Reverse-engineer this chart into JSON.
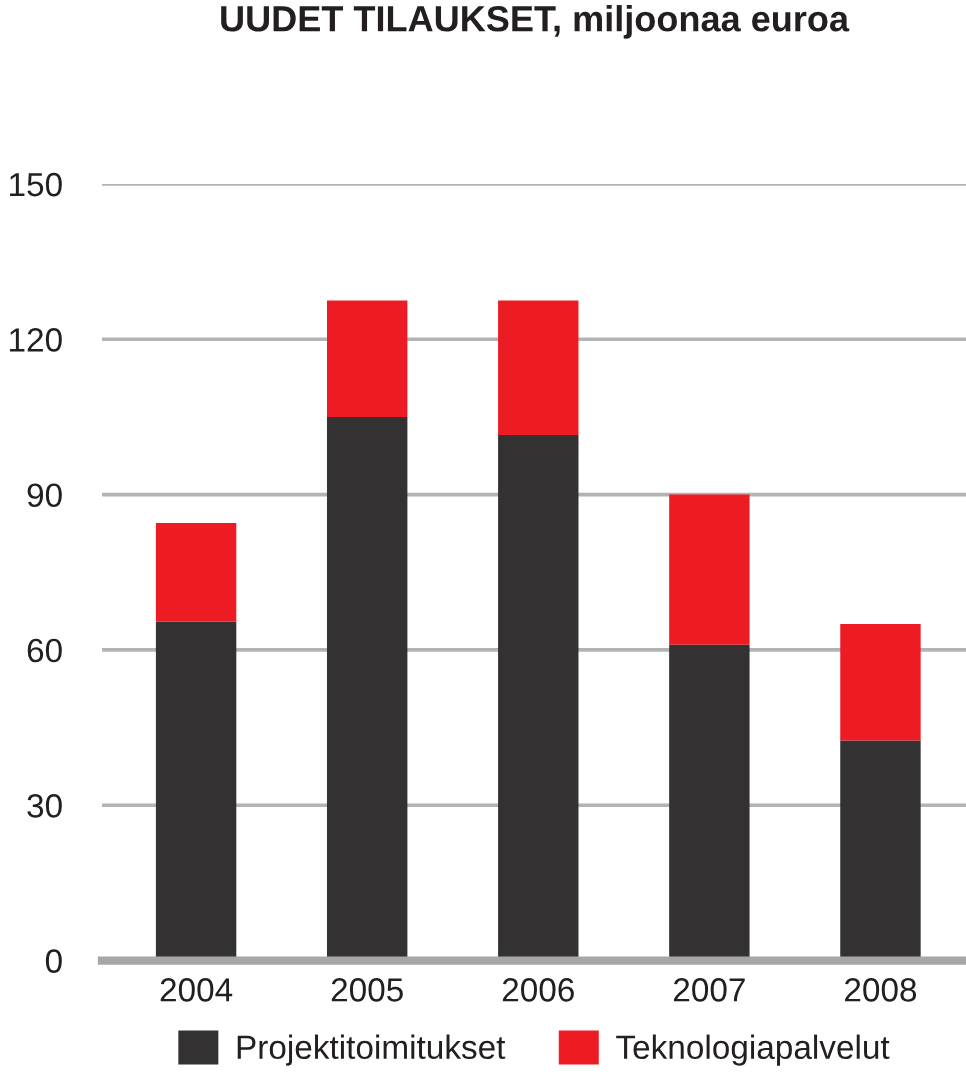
{
  "chart_data": {
    "type": "bar",
    "title": "UUDET TILAUKSET, miljoonaa euroa",
    "categories": [
      "2004",
      "2005",
      "2006",
      "2007",
      "2008"
    ],
    "series": [
      {
        "name": "Projektitoimitukset",
        "color": "#333132",
        "values": [
          65.5,
          105,
          101.5,
          61,
          42.5
        ]
      },
      {
        "name": "Teknologiapalvelut",
        "color": "#ed1c24",
        "values": [
          19,
          22.5,
          26,
          29,
          22.5
        ]
      }
    ],
    "stacked": true,
    "ylim": [
      0,
      150
    ],
    "yticks": [
      0,
      30,
      60,
      90,
      120,
      150
    ],
    "grid": "y",
    "legend": "bottom"
  }
}
